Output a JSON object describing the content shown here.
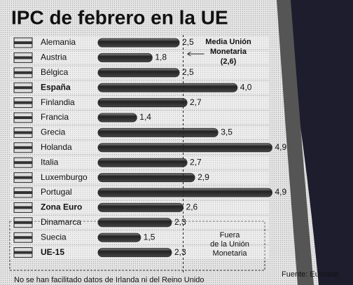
{
  "chart_data": {
    "type": "bar",
    "orientation": "horizontal",
    "title": "IPC de febrero en la UE",
    "categories": [
      "Alemania",
      "Austria",
      "Bélgica",
      "España",
      "Finlandia",
      "Francia",
      "Grecia",
      "Holanda",
      "Italia",
      "Luxemburgo",
      "Portugal",
      "Zona Euro",
      "Dinamarca",
      "Suecia",
      "UE-15"
    ],
    "values": [
      2.5,
      1.8,
      2.5,
      4.0,
      2.7,
      1.4,
      3.5,
      4.9,
      2.7,
      2.9,
      4.9,
      2.6,
      2.3,
      1.5,
      2.3
    ],
    "value_labels": [
      "2,5",
      "1,8",
      "2,5",
      "4,0",
      "2,7",
      "1,4",
      "3,5",
      "4,9",
      "2,7",
      "2,9",
      "4,9",
      "2,6",
      "2,3",
      "1,5",
      "2,3"
    ],
    "bold": [
      false,
      false,
      false,
      true,
      false,
      false,
      false,
      false,
      false,
      false,
      false,
      true,
      false,
      false,
      true
    ],
    "color": "#333333",
    "mean_line": {
      "value": 2.6,
      "label_lines": [
        "Media Unión",
        "Monetaria"
      ],
      "value_label": "(2,6)"
    },
    "outside_group_note": [
      "Fuera",
      "de la Unión",
      "Monetaria"
    ],
    "source": "Fuente: Eurostat",
    "footnote": "No se han facilitado datos de Irlanda ni del Reino Unido"
  }
}
